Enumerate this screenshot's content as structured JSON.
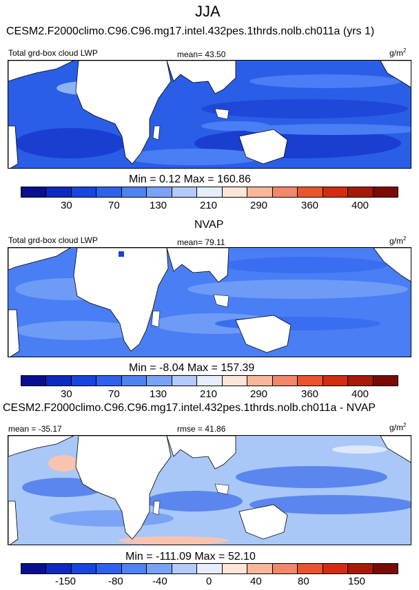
{
  "figure": {
    "title": "JJA",
    "colors": {
      "ocean_base": "#2a5ee6",
      "ocean_low": "#1a3fd0",
      "ocean_lighter": "#4a7ef5",
      "ocean_light": "#8db2f7",
      "land": "#ffffff",
      "diff_base": "#a9c7f7",
      "diff_neg": "#5b86ee",
      "diff_pos": "#f8c4b0"
    }
  },
  "panels": [
    {
      "heading": "CESM2.F2000climo.C96.C96.mg17.intel.432pes.1thrds.nolb.ch011a (yrs 1)",
      "left_label": "Total grd-box cloud LWP",
      "center_label": "mean=  43.50",
      "units": "g/m",
      "units_sup": "2",
      "minmax": "Min =   0.12 Max = 160.86",
      "ticks": [
        "30",
        "70",
        "130",
        "210",
        "290",
        "360",
        "400"
      ]
    },
    {
      "heading": "NVAP",
      "left_label": "Total grd-box cloud LWP",
      "center_label": "mean=  79.11",
      "units": "g/m",
      "units_sup": "2",
      "minmax": "Min =  -8.04 Max = 157.39",
      "ticks": [
        "30",
        "70",
        "130",
        "210",
        "290",
        "360",
        "400"
      ]
    },
    {
      "heading": "CESM2.F2000climo.C96.C96.mg17.intel.432pes.1thrds.nolb.ch011a - NVAP",
      "left_label": "mean = -35.17",
      "center_label": "rmse =  41.86",
      "units": "g/m",
      "units_sup": "2",
      "minmax": "Min = -111.09 Max =  52.10",
      "ticks": [
        "-150",
        "-80",
        "-40",
        "0",
        "40",
        "80",
        "150"
      ]
    }
  ],
  "colorbar": {
    "abs_colors": [
      "#0a0f8f",
      "#0d29c2",
      "#1745e0",
      "#2e62ee",
      "#4f83f2",
      "#7ba3f5",
      "#b3cbf8",
      "#e6eefc",
      "#fde6d8",
      "#f8b79a",
      "#f2876a",
      "#ea5530",
      "#d42c10",
      "#a81a08",
      "#7a0a02"
    ],
    "diff_colors": [
      "#0a0f8f",
      "#0d29c2",
      "#1745e0",
      "#2e62ee",
      "#4f83f2",
      "#7ba3f5",
      "#b3cbf8",
      "#e6eefc",
      "#fde6d8",
      "#f8b79a",
      "#f2876a",
      "#ea5530",
      "#d42c10",
      "#a81a08",
      "#7a0a02"
    ]
  }
}
